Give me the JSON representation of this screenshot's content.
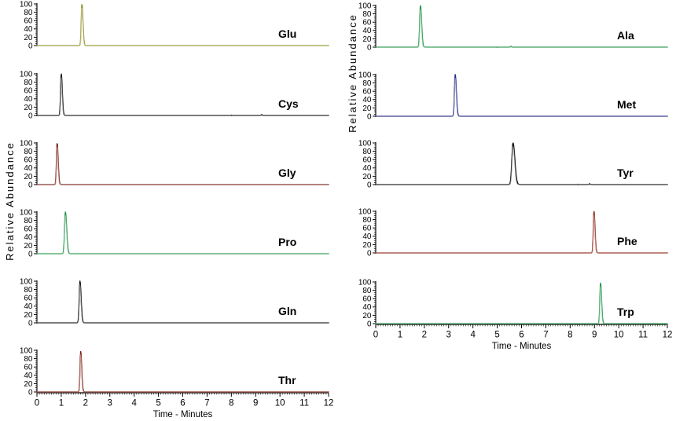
{
  "figure": {
    "background": "#ffffff",
    "description": "Extracted ion chromatograms of eleven amino acids, two-column panel layout"
  },
  "chart_data": {
    "type": "line",
    "title": "",
    "xlabel": "Time - Minutes",
    "ylabel": "Relative Abundance",
    "xlim": [
      0,
      12
    ],
    "ylim": [
      0,
      100
    ],
    "xticks": [
      0,
      1,
      2,
      3,
      4,
      5,
      6,
      7,
      8,
      9,
      10,
      11,
      12
    ],
    "yticks": [
      100,
      80,
      60,
      40,
      20,
      0
    ],
    "x_minor_tick_step": 0.1,
    "y_minor_tick_step": 5,
    "grid": false,
    "legend_position": "in-panel-right",
    "columns": [
      {
        "side": "left",
        "panels": [
          {
            "label": "Glu",
            "color": "#8f8f26",
            "peak": {
              "time_min": 1.85,
              "height": 100,
              "width_min": 0.08
            }
          },
          {
            "label": "Cys",
            "color": "#0d0d0d",
            "peak": {
              "time_min": 1.0,
              "height": 100,
              "width_min": 0.08
            },
            "blips": [
              {
                "time_min": 9.25,
                "height": 2
              }
            ]
          },
          {
            "label": "Gly",
            "color": "#761a12",
            "peak": {
              "time_min": 0.83,
              "height": 100,
              "width_min": 0.08
            }
          },
          {
            "label": "Pro",
            "color": "#1d9245",
            "peak": {
              "time_min": 1.17,
              "height": 100,
              "width_min": 0.1
            }
          },
          {
            "label": "Gln",
            "color": "#0d0d0d",
            "peak": {
              "time_min": 1.77,
              "height": 100,
              "width_min": 0.09
            }
          },
          {
            "label": "Thr",
            "color": "#7d1b10",
            "peak": {
              "time_min": 1.8,
              "height": 97,
              "width_min": 0.08
            }
          }
        ]
      },
      {
        "side": "right",
        "panels": [
          {
            "label": "Ala",
            "color": "#1d9245",
            "peak": {
              "time_min": 1.84,
              "height": 100,
              "width_min": 0.09
            },
            "blips": [
              {
                "time_min": 5.56,
                "height": 2
              }
            ]
          },
          {
            "label": "Met",
            "color": "#232380",
            "peak": {
              "time_min": 3.27,
              "height": 100,
              "width_min": 0.09
            }
          },
          {
            "label": "Tyr",
            "color": "#0d0d0d",
            "peak": {
              "time_min": 5.65,
              "height": 100,
              "width_min": 0.14
            },
            "blips": [
              {
                "time_min": 8.8,
                "height": 2
              }
            ]
          },
          {
            "label": "Phe",
            "color": "#8a2012",
            "peak": {
              "time_min": 8.98,
              "height": 100,
              "width_min": 0.08
            }
          },
          {
            "label": "Trp",
            "color": "#1d9245",
            "peak": {
              "time_min": 9.25,
              "height": 98,
              "width_min": 0.08
            }
          }
        ]
      }
    ]
  }
}
